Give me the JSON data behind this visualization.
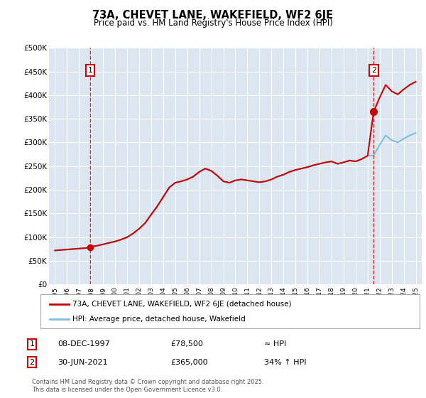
{
  "title": "73A, CHEVET LANE, WAKEFIELD, WF2 6JE",
  "subtitle": "Price paid vs. HM Land Registry's House Price Index (HPI)",
  "legend_line1": "73A, CHEVET LANE, WAKEFIELD, WF2 6JE (detached house)",
  "legend_line2": "HPI: Average price, detached house, Wakefield",
  "sale1_date": "08-DEC-1997",
  "sale1_price": 78500,
  "sale1_label": "≈ HPI",
  "sale1_x": 1997.92,
  "sale2_date": "30-JUN-2021",
  "sale2_price": 365000,
  "sale2_label": "34% ↑ HPI",
  "sale2_x": 2021.5,
  "footnote": "Contains HM Land Registry data © Crown copyright and database right 2025.\nThis data is licensed under the Open Government Licence v3.0.",
  "ylim": [
    0,
    500000
  ],
  "xlim": [
    1994.5,
    2025.5
  ],
  "bg_color": "#dce6f1",
  "red_color": "#cc0000",
  "blue_color": "#7fbfdf",
  "yticks": [
    0,
    50000,
    100000,
    150000,
    200000,
    250000,
    300000,
    350000,
    400000,
    450000,
    500000
  ],
  "years": [
    1995.0,
    1995.5,
    1996.0,
    1996.5,
    1997.0,
    1997.5,
    1997.92,
    1998.0,
    1998.5,
    1999.0,
    1999.5,
    2000.0,
    2000.5,
    2001.0,
    2001.5,
    2002.0,
    2002.5,
    2003.0,
    2003.5,
    2004.0,
    2004.5,
    2005.0,
    2005.5,
    2006.0,
    2006.5,
    2007.0,
    2007.5,
    2008.0,
    2008.5,
    2009.0,
    2009.5,
    2010.0,
    2010.5,
    2011.0,
    2011.5,
    2012.0,
    2012.5,
    2013.0,
    2013.5,
    2014.0,
    2014.5,
    2015.0,
    2015.5,
    2016.0,
    2016.5,
    2017.0,
    2017.5,
    2018.0,
    2018.5,
    2019.0,
    2019.5,
    2020.0,
    2020.5,
    2021.0,
    2021.5,
    2022.0,
    2022.5,
    2023.0,
    2023.5,
    2024.0,
    2024.5,
    2025.0
  ],
  "hpi_values": [
    72000,
    73000,
    74000,
    75000,
    76000,
    77000,
    78500,
    80000,
    82000,
    85000,
    88000,
    91000,
    95000,
    100000,
    108000,
    118000,
    130000,
    148000,
    165000,
    185000,
    205000,
    215000,
    218000,
    222000,
    228000,
    238000,
    245000,
    240000,
    230000,
    218000,
    215000,
    220000,
    222000,
    220000,
    218000,
    216000,
    218000,
    222000,
    228000,
    232000,
    238000,
    242000,
    245000,
    248000,
    252000,
    255000,
    258000,
    260000,
    255000,
    258000,
    262000,
    260000,
    265000,
    272000,
    272700,
    295000,
    315000,
    305000,
    300000,
    308000,
    315000,
    320000
  ]
}
